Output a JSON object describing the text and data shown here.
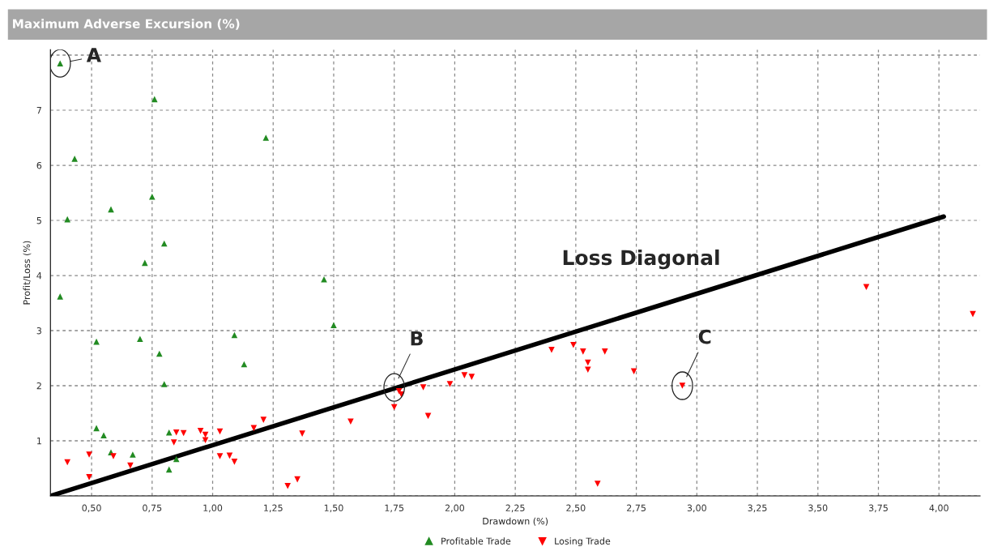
{
  "chart_data": {
    "type": "scatter",
    "title": "Maximum Adverse Excursion (%)",
    "xlabel": "Drawdown (%)",
    "ylabel": "Profit/Loss (%)",
    "xlim": [
      0.33,
      4.17
    ],
    "ylim": [
      0,
      8.1
    ],
    "xticks": [
      {
        "value": 0.5,
        "label": "0,50"
      },
      {
        "value": 0.75,
        "label": "0,75"
      },
      {
        "value": 1.0,
        "label": "1,00"
      },
      {
        "value": 1.25,
        "label": "1,25"
      },
      {
        "value": 1.5,
        "label": "1,50"
      },
      {
        "value": 1.75,
        "label": "1,75"
      },
      {
        "value": 2.0,
        "label": "2,00"
      },
      {
        "value": 2.25,
        "label": "2,25"
      },
      {
        "value": 2.5,
        "label": "2,50"
      },
      {
        "value": 2.75,
        "label": "2,75"
      },
      {
        "value": 3.0,
        "label": "3,00"
      },
      {
        "value": 3.25,
        "label": "3,25"
      },
      {
        "value": 3.5,
        "label": "3,50"
      },
      {
        "value": 3.75,
        "label": "3,75"
      },
      {
        "value": 4.0,
        "label": "4,00"
      }
    ],
    "yticks": [
      {
        "value": 0,
        "label": null
      },
      1,
      2,
      3,
      4,
      5,
      6,
      7,
      {
        "value": 8,
        "label": null
      }
    ],
    "grid": true,
    "legend": "bottom",
    "series": [
      {
        "name": "Profitable Trade",
        "marker": "triangle",
        "color": "#228b22",
        "x": [
          0.37,
          0.76,
          0.43,
          1.22,
          0.58,
          0.4,
          0.75,
          0.8,
          0.72,
          1.46,
          0.37,
          1.5,
          0.52,
          0.7,
          1.09,
          0.78,
          1.13,
          0.8,
          0.52,
          0.55,
          0.58,
          0.67,
          0.82,
          0.82,
          0.85
        ],
        "values": [
          7.85,
          7.2,
          6.12,
          6.5,
          5.2,
          5.02,
          5.43,
          4.58,
          4.23,
          3.93,
          3.62,
          3.1,
          2.8,
          2.85,
          2.92,
          2.58,
          2.39,
          2.03,
          1.23,
          1.1,
          0.79,
          0.75,
          1.15,
          0.48,
          0.67
        ]
      },
      {
        "name": "Losing Trade",
        "marker": "triangle_down",
        "color": "#ff0000",
        "x": [
          0.4,
          0.49,
          0.49,
          0.59,
          0.66,
          0.84,
          0.85,
          0.88,
          0.95,
          0.97,
          0.97,
          1.03,
          1.03,
          1.07,
          1.09,
          1.17,
          1.21,
          1.31,
          1.35,
          1.37,
          1.57,
          1.75,
          1.77,
          1.78,
          1.87,
          1.89,
          1.98,
          2.04,
          2.07,
          2.4,
          2.49,
          2.53,
          2.55,
          2.55,
          2.62,
          2.74,
          2.59,
          2.94,
          3.7,
          4.14
        ],
        "values": [
          0.61,
          0.75,
          0.34,
          0.72,
          0.55,
          0.97,
          1.15,
          1.14,
          1.18,
          1.11,
          1.01,
          1.17,
          0.72,
          0.73,
          0.62,
          1.23,
          1.38,
          0.18,
          0.3,
          1.13,
          1.35,
          1.61,
          1.9,
          1.84,
          1.97,
          1.45,
          2.03,
          2.19,
          2.16,
          2.65,
          2.74,
          2.62,
          2.42,
          2.29,
          2.62,
          2.26,
          0.22,
          2.0,
          3.79,
          3.3
        ]
      },
      {
        "type": "line",
        "color": "#000000",
        "line_style": "solid",
        "x": [
          0.33,
          4.02
        ],
        "values": [
          0,
          5.07
        ]
      }
    ],
    "annotations": [
      {
        "text": "A",
        "x": 0.37,
        "y": 7.85
      },
      {
        "text": "B",
        "x": 1.75,
        "y": 1.97
      },
      {
        "text": "C",
        "x": 2.94,
        "y": 2.0
      },
      "Loss Diagonal"
    ]
  }
}
